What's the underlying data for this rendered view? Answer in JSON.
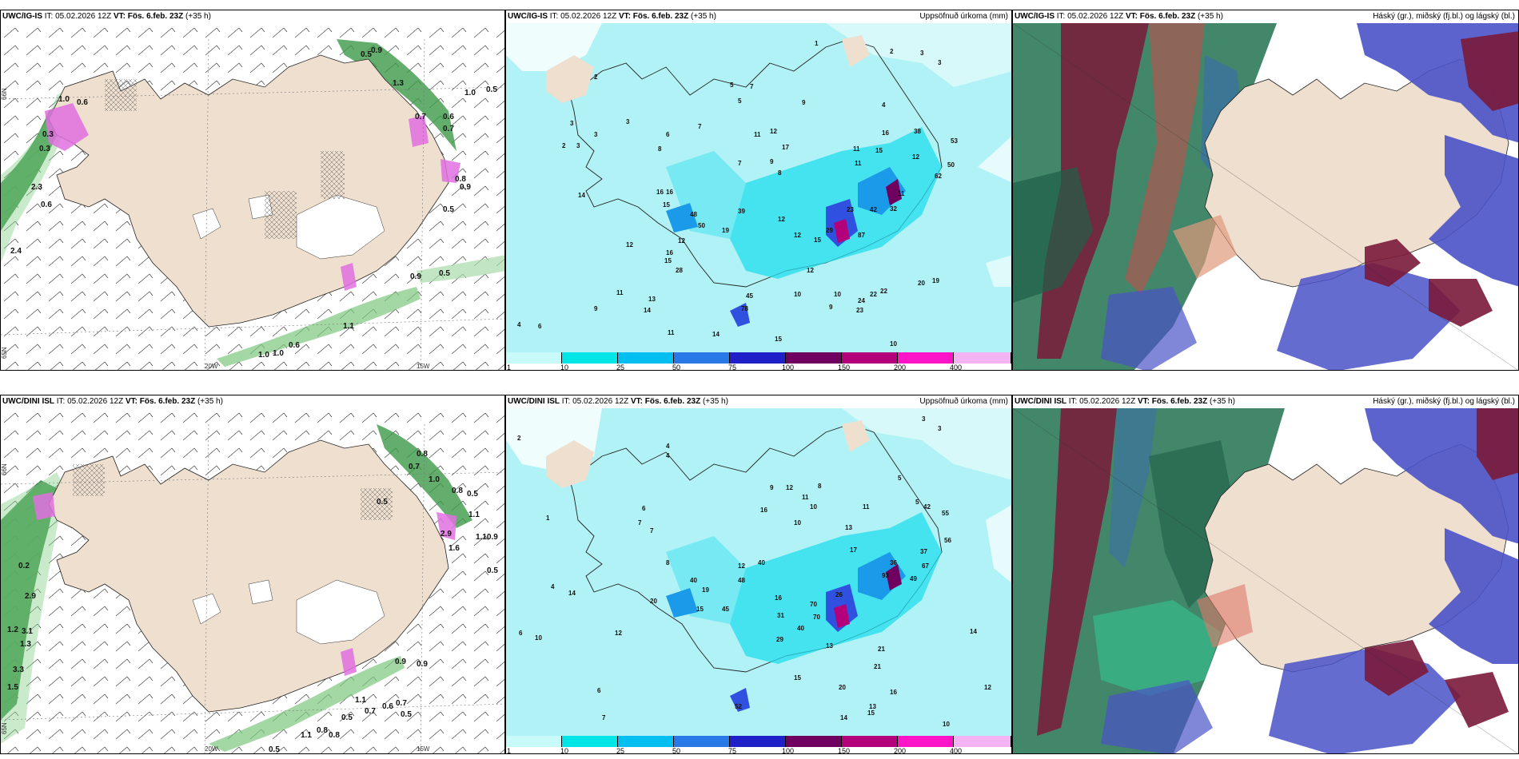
{
  "panels": [
    {
      "id": "igis-wind",
      "title_model": "UWC/IG-IS",
      "title_it": " IT: 05.02.2026 12Z ",
      "title_vt_label": "VT:",
      "title_vt": " Fös. 6.feb. 23Z",
      "title_lead": " (+35 h)",
      "right_label": "",
      "lat_labels": [
        "66N",
        "65N"
      ],
      "lon_labels": [
        "20W",
        "15W"
      ],
      "values": [
        "0.9",
        "0.5",
        "1.3",
        "1.0",
        "0.5",
        "1.0",
        "0.6",
        "0.3",
        "0.3",
        "2.3",
        "0.6",
        "2.4",
        "0.7",
        "0.6",
        "0.7",
        "0.8",
        "0.9",
        "0.5",
        "0.9",
        "0.5",
        "1.1",
        "1.0",
        "1.0",
        "0.6"
      ]
    },
    {
      "id": "igis-precip",
      "title_model": "UWC/IG-IS",
      "title_it": " IT: 05.02.2026 12Z ",
      "title_vt_label": "VT:",
      "title_vt": " Fös. 6.feb. 23Z",
      "title_lead": " (+35 h)",
      "right_label": "Uppsöfnuð úrkoma (mm)",
      "values": [
        "1",
        "2",
        "3",
        "3",
        "2",
        "5",
        "7",
        "5",
        "9",
        "4",
        "3",
        "3",
        "3",
        "2",
        "3",
        "6",
        "7",
        "8",
        "7",
        "11",
        "12",
        "9",
        "8",
        "11",
        "16",
        "15",
        "17",
        "11",
        "38",
        "53",
        "12",
        "62",
        "50",
        "16",
        "16",
        "15",
        "48",
        "39",
        "14",
        "50",
        "19",
        "12",
        "16",
        "28",
        "12",
        "15",
        "15",
        "29",
        "12",
        "11",
        "32",
        "12",
        "45",
        "23",
        "42",
        "87",
        "10",
        "78",
        "10",
        "12",
        "9",
        "22",
        "24",
        "22",
        "20",
        "19",
        "23",
        "14",
        "4",
        "6",
        "9",
        "11",
        "13",
        "11",
        "14",
        "15",
        "10"
      ]
    },
    {
      "id": "igis-cloud",
      "title_model": "UWC/IG-IS",
      "title_it": " IT: 05.02.2026 12Z ",
      "title_vt_label": "VT:",
      "title_vt": " Fös. 6.feb. 23Z",
      "title_lead": " (+35 h)",
      "right_label": "Háský (gr.), miðský (fj.bl.) og lágský (bl.)"
    },
    {
      "id": "dini-wind",
      "title_model": "UWC/DINI ISL",
      "title_it": " IT: 05.02.2026 12Z ",
      "title_vt_label": "VT:",
      "title_vt": " Fös. 6.feb. 23Z",
      "title_lead": " (+35 h)",
      "right_label": "",
      "lat_labels": [
        "66N",
        "65N"
      ],
      "lon_labels": [
        "20W",
        "15W"
      ],
      "values": [
        "0.8",
        "0.7",
        "1.0",
        "0.8",
        "0.5",
        "0.5",
        "1.1",
        "1.10.9",
        "2.9",
        "1.6",
        "0.5",
        "0.2",
        "2.9",
        "1.2",
        "3.1",
        "1.3",
        "3.3",
        "1.5",
        "0.9",
        "0.9",
        "1.1",
        "0.7",
        "0.6",
        "0.7",
        "0.5",
        "0.5",
        "1.1",
        "0.8",
        "0.8",
        "0.5"
      ]
    },
    {
      "id": "dini-precip",
      "title_model": "UWC/DINI ISL",
      "title_it": " IT: 05.02.2026 12Z ",
      "title_vt_label": "VT:",
      "title_vt": " Fös. 6.feb. 23Z",
      "title_lead": " (+35 h)",
      "right_label": "Uppsöfnuð úrkoma (mm)",
      "values": [
        "3",
        "3",
        "2",
        "4",
        "4",
        "1",
        "8",
        "5",
        "9",
        "12",
        "11",
        "10",
        "5",
        "42",
        "55",
        "6",
        "7",
        "7",
        "16",
        "10",
        "13",
        "37",
        "56",
        "11",
        "40",
        "12",
        "8",
        "17",
        "36",
        "67",
        "48",
        "40",
        "19",
        "49",
        "93",
        "16",
        "14",
        "20",
        "45",
        "31",
        "70",
        "70",
        "26",
        "15",
        "40",
        "29",
        "13",
        "21",
        "14",
        "52",
        "21",
        "4",
        "6",
        "10",
        "6",
        "7",
        "12",
        "15",
        "20",
        "16",
        "13",
        "14",
        "15",
        "10",
        "12"
      ]
    },
    {
      "id": "dini-cloud",
      "title_model": "UWC/DINI ISL",
      "title_it": " IT: 05.02.2026 12Z ",
      "title_vt_label": "VT:",
      "title_vt": " Fös. 6.feb. 23Z",
      "title_lead": " (+35 h)",
      "right_label": "Háský (gr.), miðský (fj.bl.) og lágský (bl.)"
    }
  ],
  "colorbar": {
    "labels": [
      "1",
      "10",
      "25",
      "50",
      "75",
      "100",
      "150",
      "200",
      "400"
    ],
    "colors": [
      "#c8fafa",
      "#00e6e6",
      "#00bff0",
      "#2878e6",
      "#2020c8",
      "#700060",
      "#b4007a",
      "#ff14c8",
      "#f4b4f4"
    ]
  },
  "colors": {
    "land": "#eedfcf",
    "sea": "#ffffff",
    "precip_light": "#b0f2f5",
    "precip_mid": "#22dcec",
    "wind_green": "#2e8b3a",
    "high_cloud": "#2e7a5a",
    "mid_cloud": "#7a1a3a",
    "low_cloud": "#4a52c8"
  }
}
